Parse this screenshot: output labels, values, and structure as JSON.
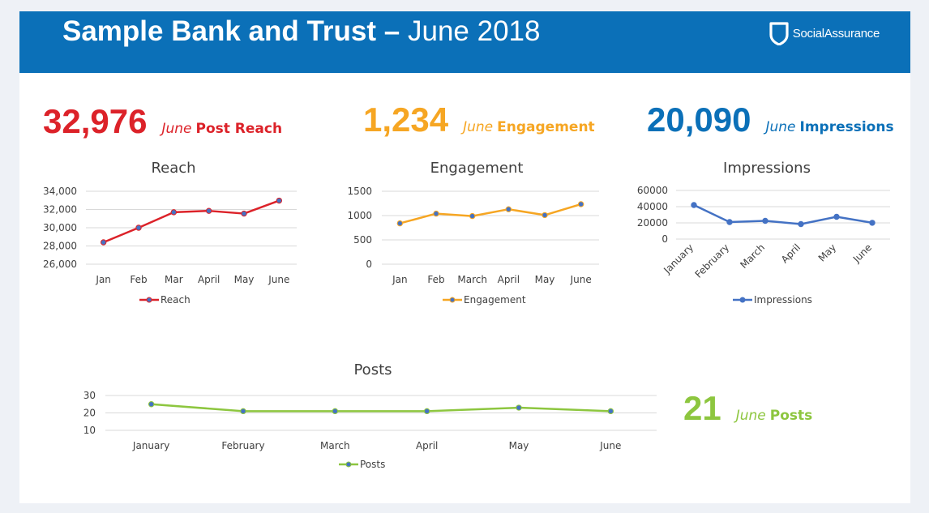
{
  "header": {
    "title_bold": "Sample Bank and Trust –",
    "title_rest": "June 2018",
    "logo_text": "SocialAssurance",
    "logo_icon": "shield-icon"
  },
  "kpis": {
    "reach": {
      "value": "32,976",
      "month": "June",
      "label": "Post Reach",
      "color": "#dc2229"
    },
    "engagement": {
      "value": "1,234",
      "month": "June",
      "label": "Engagement",
      "color": "#f6a623"
    },
    "impressions": {
      "value": "20,090",
      "month": "June",
      "label": "Impressions",
      "color": "#0b70b8"
    },
    "posts": {
      "value": "21",
      "month": "June",
      "label": "Posts",
      "color": "#8dc63f"
    }
  },
  "chart_data": [
    {
      "type": "line",
      "title": "Reach",
      "categories": [
        "Jan",
        "Feb",
        "Mar",
        "April",
        "May",
        "June"
      ],
      "series": [
        {
          "name": "Reach",
          "values": [
            28400,
            30000,
            31700,
            31850,
            31550,
            32976
          ]
        }
      ],
      "ylim": [
        26000,
        34000
      ],
      "yticks": [
        26000,
        28000,
        30000,
        32000,
        34000
      ],
      "ytick_labels": [
        "26,000",
        "28,000",
        "30,000",
        "32,000",
        "34,000"
      ],
      "grid": true,
      "legend": "bottom",
      "color": "#dc2229"
    },
    {
      "type": "line",
      "title": "Engagement",
      "categories": [
        "Jan",
        "Feb",
        "March",
        "April",
        "May",
        "June"
      ],
      "series": [
        {
          "name": "Engagement",
          "values": [
            840,
            1040,
            990,
            1130,
            1010,
            1234
          ]
        }
      ],
      "ylim": [
        0,
        1500
      ],
      "yticks": [
        0,
        500,
        1000,
        1500
      ],
      "ytick_labels": [
        "0",
        "500",
        "1000",
        "1500"
      ],
      "grid": true,
      "legend": "bottom",
      "color": "#f6a623"
    },
    {
      "type": "line",
      "title": "Impressions",
      "categories": [
        "January",
        "February",
        "March",
        "April",
        "May",
        "June"
      ],
      "series": [
        {
          "name": "Impressions",
          "values": [
            42000,
            21000,
            22500,
            18500,
            27500,
            20090
          ]
        }
      ],
      "ylim": [
        0,
        60000
      ],
      "yticks": [
        0,
        20000,
        40000,
        60000
      ],
      "ytick_labels": [
        "0",
        "20000",
        "40000",
        "60000"
      ],
      "grid": true,
      "legend": "bottom",
      "color": "#4472c4"
    },
    {
      "type": "line",
      "title": "Posts",
      "categories": [
        "January",
        "February",
        "March",
        "April",
        "May",
        "June"
      ],
      "series": [
        {
          "name": "Posts",
          "values": [
            25,
            21,
            21,
            21,
            23,
            21
          ]
        }
      ],
      "ylim": [
        10,
        30
      ],
      "yticks": [
        10,
        20,
        30
      ],
      "ytick_labels": [
        "10",
        "20",
        "30"
      ],
      "grid": true,
      "legend": "bottom",
      "color": "#8dc63f"
    }
  ]
}
